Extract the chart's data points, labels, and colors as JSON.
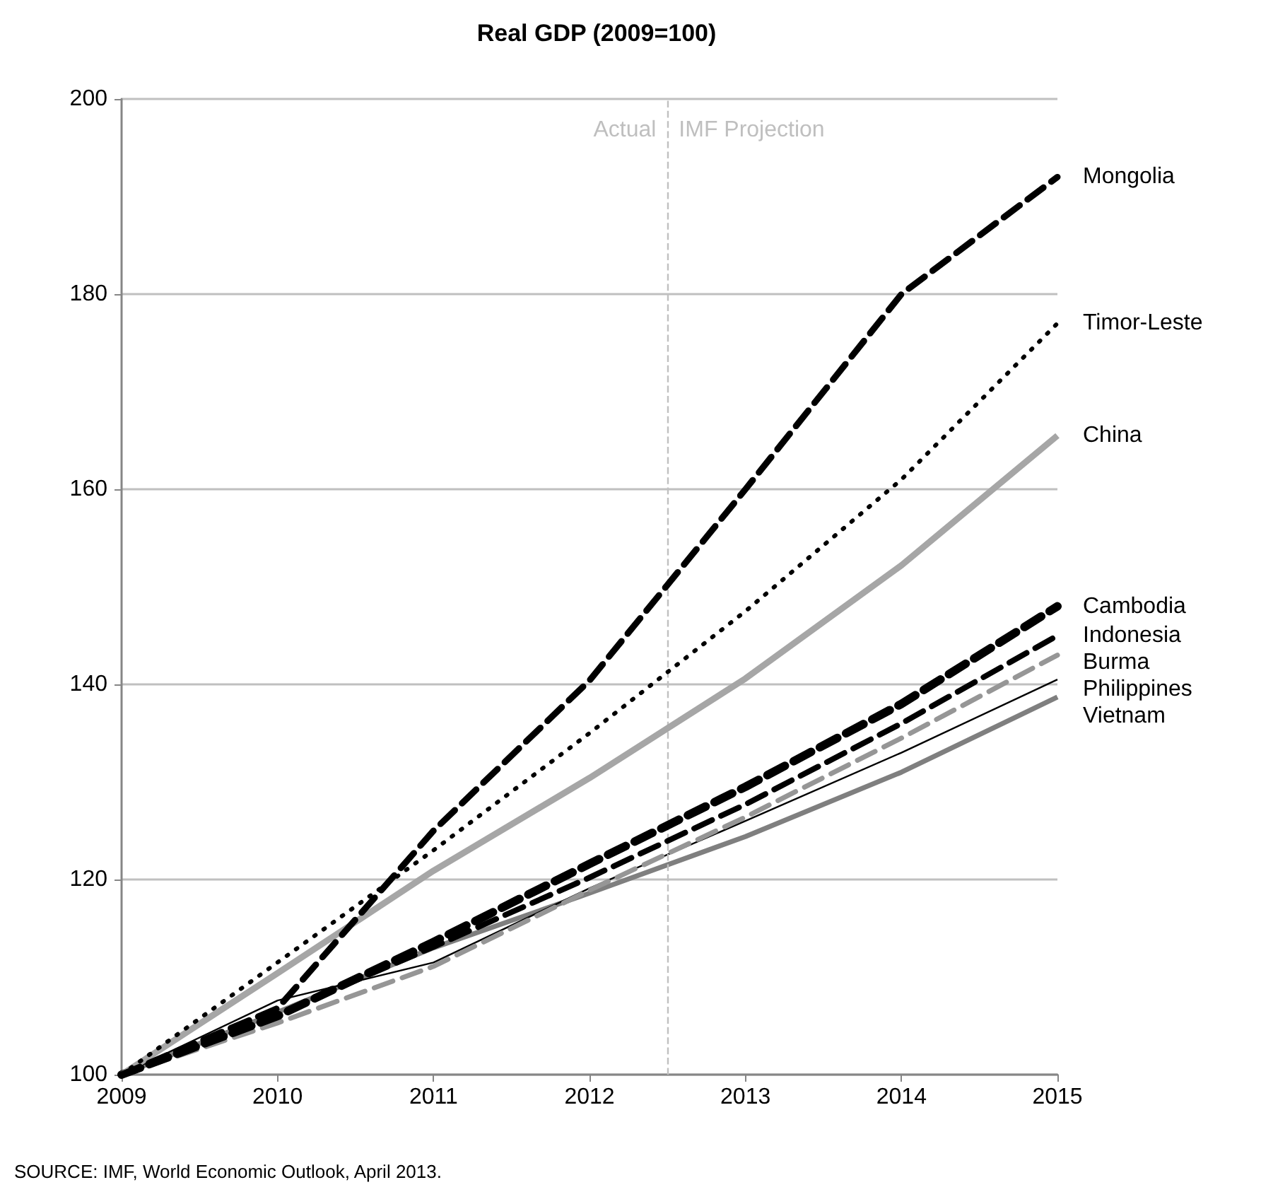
{
  "chart_data": {
    "type": "line",
    "title": "Real GDP (2009=100)",
    "x": [
      2009,
      2010,
      2011,
      2012,
      2013,
      2014,
      2015
    ],
    "xlim": [
      2009,
      2015
    ],
    "xticks": [
      2009,
      2010,
      2011,
      2012,
      2013,
      2014,
      2015
    ],
    "ylim": [
      100,
      200
    ],
    "yticks": [
      100,
      120,
      140,
      160,
      180,
      200
    ],
    "grid": "y",
    "legend": false,
    "marker": "none",
    "series": [
      {
        "name": "Mongolia",
        "color": "#000000",
        "line_style": "dashed",
        "values": [
          100,
          106.8,
          125,
          140.4,
          160,
          180,
          192
        ]
      },
      {
        "name": "Timor-Leste",
        "color": "#000000",
        "line_style": "dotted",
        "values": [
          100,
          111.5,
          123,
          135,
          147.5,
          161,
          177
        ]
      },
      {
        "name": "China",
        "color": "#a6a6a6",
        "line_style": "solid",
        "values": [
          100,
          110.4,
          120.9,
          130.4,
          140.6,
          152.2,
          165.5
        ]
      },
      {
        "name": "Cambodia",
        "color": "#000000",
        "line_style": "dashed",
        "values": [
          100,
          106,
          113.6,
          121.6,
          129.5,
          138,
          148
        ]
      },
      {
        "name": "Indonesia",
        "color": "#000000",
        "line_style": "dashed",
        "values": [
          100,
          106.2,
          113.1,
          120.2,
          127.7,
          136,
          145
        ]
      },
      {
        "name": "Burma",
        "color": "#969696",
        "line_style": "dashed",
        "values": [
          100,
          105.3,
          111.1,
          118.9,
          126.4,
          134.5,
          143
        ]
      },
      {
        "name": "Philippines",
        "color": "#000000",
        "line_style": "solid",
        "values": [
          100,
          107.6,
          111.5,
          119.1,
          126,
          133,
          140.5
        ]
      },
      {
        "name": "Vietnam",
        "color": "#7f7f7f",
        "line_style": "solid",
        "values": [
          100,
          106.4,
          113,
          118.6,
          124.4,
          131,
          138.7
        ]
      }
    ],
    "ref_lines": [
      {
        "axis": "x",
        "value": 2012.5,
        "color": "#c0c0c0",
        "line_style": "dashed"
      }
    ],
    "annotations": [
      "Actual",
      "IMF Projection",
      "SOURCE: IMF, World Economic Outlook, April 2013."
    ]
  }
}
